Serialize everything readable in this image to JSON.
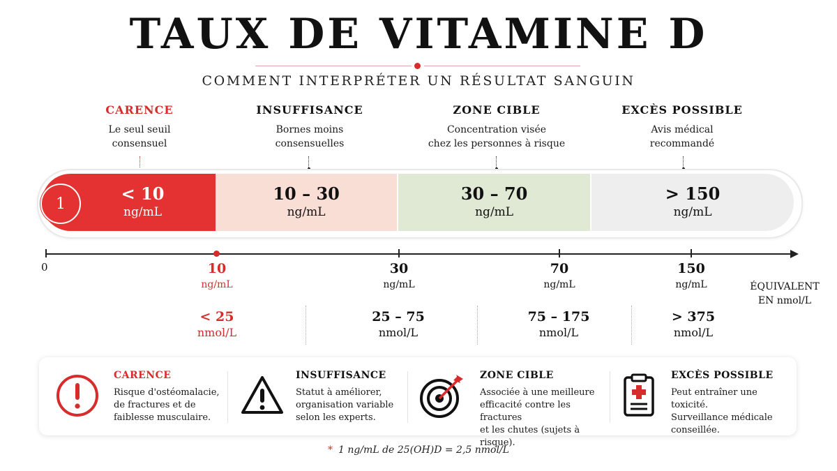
{
  "title": "TAUX DE VITAMINE D",
  "subtitle": "COMMENT INTERPRÉTER UN RÉSULTAT SANGUIN",
  "colors": {
    "accent": "#d62c2c",
    "carence": "#e43232",
    "insuffisance": "#f9ded6",
    "zone_cible": "#dfe9d3",
    "exces": "#eeeeee"
  },
  "categories": [
    {
      "name": "CARENCE",
      "desc_1": "Le seul seuil",
      "desc_2": "consensuel",
      "range": "< 10",
      "unit": "ng/mL"
    },
    {
      "name": "INSUFFISANCE",
      "desc_1": "Bornes moins",
      "desc_2": "consensuelles",
      "range": "10 – 30",
      "unit": "ng/mL"
    },
    {
      "name": "ZONE CIBLE",
      "desc_1": "Concentration visée",
      "desc_2": "chez les personnes à risque",
      "range": "30 – 70",
      "unit": "ng/mL"
    },
    {
      "name": "EXCÈS POSSIBLE",
      "desc_1": "Avis médical",
      "desc_2": "recommandé",
      "range": "> 150",
      "unit": "ng/mL"
    }
  ],
  "badge": "1",
  "axis": {
    "origin": "0",
    "ticks": [
      {
        "value": "10",
        "unit": "ng/mL"
      },
      {
        "value": "30",
        "unit": "ng/mL"
      },
      {
        "value": "70",
        "unit": "ng/mL"
      },
      {
        "value": "150",
        "unit": "ng/mL"
      }
    ],
    "equiv_1": "ÉQUIVALENT",
    "equiv_2": "EN nmol/L"
  },
  "nmol": [
    {
      "range": "< 25",
      "unit": "nmol/L"
    },
    {
      "range": "25 – 75",
      "unit": "nmol/L"
    },
    {
      "range": "75 – 175",
      "unit": "nmol/L"
    },
    {
      "range": "> 375",
      "unit": "nmol/L"
    }
  ],
  "cards": [
    {
      "icon": "exclamation-circle-icon",
      "title": "CARENCE",
      "l1": "Risque d'ostéomalacie,",
      "l2": "de fractures et de",
      "l3": "faiblesse musculaire."
    },
    {
      "icon": "warning-triangle-icon",
      "title": "INSUFFISANCE",
      "l1": "Statut à améliorer,",
      "l2": "organisation variable",
      "l3": "selon les experts."
    },
    {
      "icon": "target-icon",
      "title": "ZONE CIBLE",
      "l1": "Associée à une meilleure",
      "l2": "efficacité contre les fractures",
      "l3": "et les chutes (sujets à risque)."
    },
    {
      "icon": "clipboard-medical-icon",
      "title": "EXCÈS POSSIBLE",
      "l1": "Peut entraîner une toxicité.",
      "l2": "Surveillance médicale",
      "l3": "conseillée."
    }
  ],
  "footnote_star": "*",
  "footnote": "1 ng/mL de 25(OH)D = 2,5 nmol/L"
}
